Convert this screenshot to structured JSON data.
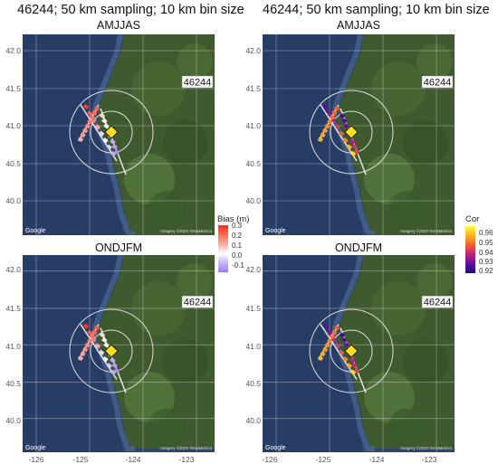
{
  "figures": [
    {
      "title": "46244; 50 km sampling; 10 km bin size"
    },
    {
      "title": "46244; 50 km sampling; 10 km bin size"
    }
  ],
  "panels": [
    {
      "season": "AMJJAS",
      "station_label": "46244",
      "metric": "bias"
    },
    {
      "season": "AMJJAS",
      "station_label": "46244",
      "metric": "cor"
    },
    {
      "season": "ONDJFM",
      "station_label": "46244",
      "metric": "bias"
    },
    {
      "season": "ONDJFM",
      "station_label": "46244",
      "metric": "cor"
    }
  ],
  "axes": {
    "lat_ticks": [
      "42.0",
      "41.5",
      "41.0",
      "40.5",
      "40.0"
    ],
    "lon_ticks": [
      "-126",
      "-125",
      "-124",
      "-123"
    ]
  },
  "map_credits": {
    "logo": "Google",
    "attribution": "Imagery ©2020 TerraMetrics"
  },
  "legends": {
    "bias": {
      "title": "Bias (m)",
      "ticks": [
        "0.3",
        "0.2",
        "0.1",
        "0.0",
        "-0.1"
      ],
      "colors": [
        "#ff2a1a",
        "#ff6a55",
        "#ffaaa0",
        "#ffffff",
        "#c8b4ff",
        "#9a7cff"
      ]
    },
    "cor": {
      "title": "Cor",
      "ticks": [
        "0.96",
        "0.95",
        "0.94",
        "0.93",
        "0.92"
      ],
      "colors": [
        "#ffff40",
        "#ffb020",
        "#f06030",
        "#c02080",
        "#6010a0",
        "#1a0a80"
      ]
    }
  },
  "map_colors": {
    "ocean": "#2e4470",
    "land": "#3f5a2e",
    "grid": "#ffffff",
    "buoy_marker": "#ffe11a"
  }
}
